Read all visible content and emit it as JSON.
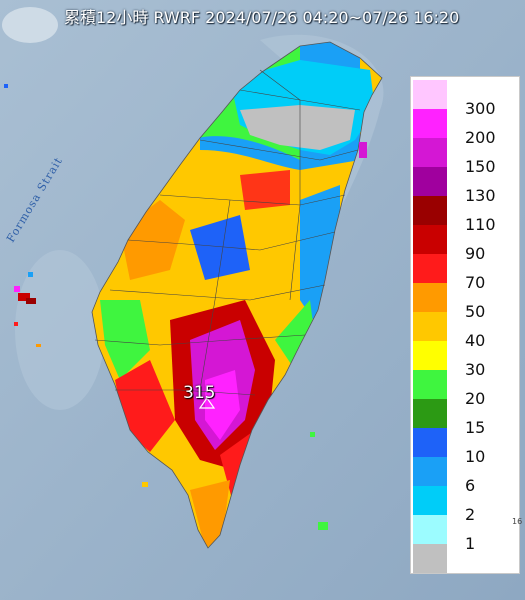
{
  "title": "累積12小時 RWRF 2024/07/26 04:20~07/26 16:20",
  "sea_label": "Formosa Strait",
  "peak_value": "315",
  "corner_text": "16",
  "legend": [
    {
      "label": "300",
      "color": "#ffc6ff"
    },
    {
      "label": "200",
      "color": "#ff22ff"
    },
    {
      "label": "150",
      "color": "#d417d4"
    },
    {
      "label": "130",
      "color": "#a0009e"
    },
    {
      "label": "110",
      "color": "#9a0000"
    },
    {
      "label": "90",
      "color": "#c90000"
    },
    {
      "label": "70",
      "color": "#ff1b1b"
    },
    {
      "label": "50",
      "color": "#ff9a00"
    },
    {
      "label": "40",
      "color": "#ffc800"
    },
    {
      "label": "30",
      "color": "#ffff00"
    },
    {
      "label": "20",
      "color": "#3ff53f"
    },
    {
      "label": "15",
      "color": "#2c9a14"
    },
    {
      "label": "10",
      "color": "#1e62f8"
    },
    {
      "label": "6",
      "color": "#1aa0f6"
    },
    {
      "label": "2",
      "color": "#00cdf8"
    },
    {
      "label": "1",
      "color": "#9cfcff"
    },
    {
      "label": "",
      "color": "#c0c0c0"
    }
  ]
}
